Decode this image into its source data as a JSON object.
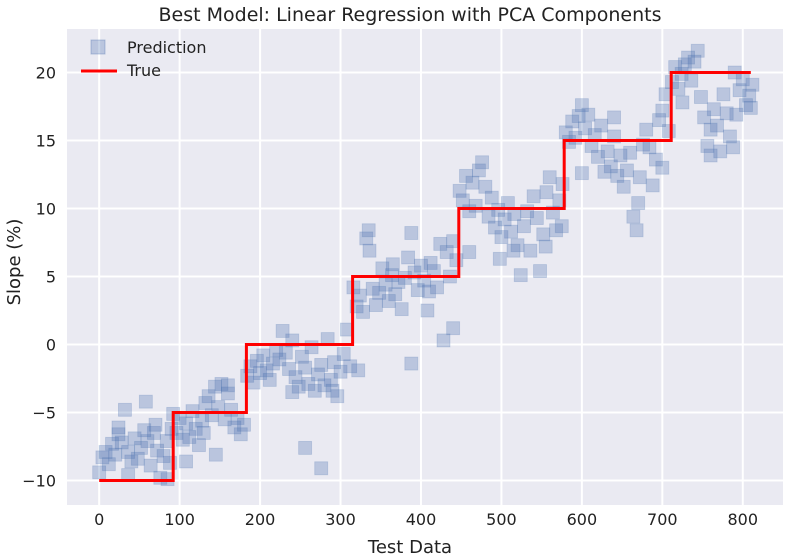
{
  "chart_data": {
    "type": "scatter",
    "title": "Best Model: Linear Regression with PCA Components",
    "xlabel": "Test Data",
    "ylabel": "Slope (%)",
    "xlim": [
      -40,
      850
    ],
    "ylim": [
      -11.8,
      23.2
    ],
    "xticks": [
      0,
      100,
      200,
      300,
      400,
      500,
      600,
      700,
      800
    ],
    "yticks": [
      -10,
      -5,
      0,
      5,
      10,
      15,
      20
    ],
    "grid": true,
    "legend_position": "top-left",
    "colors": {
      "background": "#eaeaf2",
      "prediction": "#4c72b0",
      "true": "#ff0000",
      "grid": "#ffffff"
    },
    "series": [
      {
        "name": "Prediction",
        "kind": "scatter",
        "marker": "square",
        "points": [
          [
            0,
            -9.4
          ],
          [
            4,
            -8.3
          ],
          [
            8,
            -7.9
          ],
          [
            12,
            -8.8
          ],
          [
            16,
            -7.3
          ],
          [
            20,
            -8.1
          ],
          [
            24,
            -6.6
          ],
          [
            28,
            -7.2
          ],
          [
            32,
            -4.8
          ],
          [
            36,
            -7.9
          ],
          [
            40,
            -8.6
          ],
          [
            44,
            -6.9
          ],
          [
            48,
            -8.4
          ],
          [
            52,
            -7.6
          ],
          [
            56,
            -6.3
          ],
          [
            60,
            -7.1
          ],
          [
            64,
            -8.9
          ],
          [
            68,
            -6.5
          ],
          [
            72,
            -7.8
          ],
          [
            76,
            -9.8
          ],
          [
            80,
            -8.2
          ],
          [
            84,
            -7.1
          ],
          [
            88,
            -8.7
          ],
          [
            58,
            -4.2
          ],
          [
            24,
            -6.1
          ],
          [
            36,
            -9.6
          ],
          [
            70,
            -5.9
          ],
          [
            85,
            -9.9
          ],
          [
            90,
            -6.2
          ],
          [
            92,
            -5.1
          ],
          [
            96,
            -6.5
          ],
          [
            100,
            -5.4
          ],
          [
            104,
            -7.0
          ],
          [
            108,
            -5.8
          ],
          [
            112,
            -6.8
          ],
          [
            116,
            -4.9
          ],
          [
            120,
            -6.2
          ],
          [
            124,
            -7.4
          ],
          [
            128,
            -5.6
          ],
          [
            132,
            -4.3
          ],
          [
            136,
            -3.8
          ],
          [
            140,
            -5.2
          ],
          [
            144,
            -3.1
          ],
          [
            148,
            -4.6
          ],
          [
            152,
            -2.9
          ],
          [
            156,
            -5.5
          ],
          [
            160,
            -3.6
          ],
          [
            164,
            -4.8
          ],
          [
            168,
            -6.1
          ],
          [
            172,
            -5.4
          ],
          [
            176,
            -6.6
          ],
          [
            180,
            -5.9
          ],
          [
            145,
            -8.1
          ],
          [
            108,
            -8.6
          ],
          [
            160,
            -3.0
          ],
          [
            130,
            -6.5
          ],
          [
            184,
            -2.3
          ],
          [
            188,
            -1.6
          ],
          [
            192,
            -2.8
          ],
          [
            196,
            -1.2
          ],
          [
            200,
            -2.1
          ],
          [
            204,
            -0.8
          ],
          [
            208,
            -1.9
          ],
          [
            212,
            -2.6
          ],
          [
            216,
            -1.4
          ],
          [
            220,
            -0.4
          ],
          [
            224,
            -1.1
          ],
          [
            228,
            1.0
          ],
          [
            232,
            -0.6
          ],
          [
            236,
            -1.8
          ],
          [
            240,
            0.3
          ],
          [
            244,
            -2.4
          ],
          [
            248,
            -3.1
          ],
          [
            252,
            -0.9
          ],
          [
            256,
            -1.7
          ],
          [
            260,
            -2.9
          ],
          [
            264,
            -0.2
          ],
          [
            268,
            -3.4
          ],
          [
            272,
            -2.2
          ],
          [
            276,
            -1.5
          ],
          [
            280,
            -3.0
          ],
          [
            284,
            0.4
          ],
          [
            288,
            -2.6
          ],
          [
            292,
            -1.3
          ],
          [
            296,
            -3.8
          ],
          [
            300,
            -2.0
          ],
          [
            304,
            -0.7
          ],
          [
            308,
            1.1
          ],
          [
            312,
            -1.6
          ],
          [
            256,
            -7.6
          ],
          [
            276,
            -9.1
          ],
          [
            322,
            -1.9
          ],
          [
            290,
            -3.4
          ],
          [
            240,
            -3.5
          ],
          [
            316,
            4.2
          ],
          [
            320,
            2.8
          ],
          [
            324,
            3.6
          ],
          [
            328,
            2.4
          ],
          [
            332,
            7.8
          ],
          [
            336,
            6.9
          ],
          [
            340,
            4.1
          ],
          [
            344,
            2.9
          ],
          [
            348,
            3.8
          ],
          [
            352,
            5.6
          ],
          [
            356,
            4.4
          ],
          [
            360,
            3.2
          ],
          [
            364,
            5.1
          ],
          [
            368,
            3.7
          ],
          [
            372,
            4.6
          ],
          [
            376,
            2.6
          ],
          [
            380,
            4.9
          ],
          [
            384,
            6.4
          ],
          [
            388,
            8.2
          ],
          [
            392,
            5.3
          ],
          [
            396,
            4.0
          ],
          [
            400,
            5.8
          ],
          [
            404,
            4.7
          ],
          [
            408,
            2.5
          ],
          [
            412,
            6.0
          ],
          [
            416,
            5.4
          ],
          [
            420,
            4.2
          ],
          [
            424,
            7.4
          ],
          [
            428,
            0.3
          ],
          [
            432,
            6.8
          ],
          [
            436,
            5.0
          ],
          [
            440,
            7.6
          ],
          [
            444,
            6.2
          ],
          [
            335,
            8.4
          ],
          [
            388,
            -1.4
          ],
          [
            365,
            5.9
          ],
          [
            410,
            3.9
          ],
          [
            440,
            1.2
          ],
          [
            448,
            11.3
          ],
          [
            452,
            10.6
          ],
          [
            456,
            12.4
          ],
          [
            460,
            9.8
          ],
          [
            464,
            11.9
          ],
          [
            468,
            10.2
          ],
          [
            472,
            12.8
          ],
          [
            476,
            13.4
          ],
          [
            480,
            11.6
          ],
          [
            484,
            9.4
          ],
          [
            488,
            10.8
          ],
          [
            492,
            8.6
          ],
          [
            496,
            9.9
          ],
          [
            500,
            7.9
          ],
          [
            504,
            9.2
          ],
          [
            508,
            10.4
          ],
          [
            512,
            8.3
          ],
          [
            516,
            9.6
          ],
          [
            520,
            7.3
          ],
          [
            524,
            5.1
          ],
          [
            528,
            8.7
          ],
          [
            532,
            9.8
          ],
          [
            536,
            6.9
          ],
          [
            540,
            10.9
          ],
          [
            544,
            9.3
          ],
          [
            548,
            5.4
          ],
          [
            552,
            8.1
          ],
          [
            556,
            11.2
          ],
          [
            560,
            12.3
          ],
          [
            564,
            9.7
          ],
          [
            568,
            8.4
          ],
          [
            572,
            10.6
          ],
          [
            576,
            11.8
          ],
          [
            460,
            6.8
          ],
          [
            498,
            6.3
          ],
          [
            515,
            6.9
          ],
          [
            555,
            7.2
          ],
          [
            575,
            8.7
          ],
          [
            580,
            15.6
          ],
          [
            584,
            14.9
          ],
          [
            588,
            16.4
          ],
          [
            592,
            15.2
          ],
          [
            596,
            16.8
          ],
          [
            600,
            17.6
          ],
          [
            604,
            15.9
          ],
          [
            608,
            16.9
          ],
          [
            612,
            14.6
          ],
          [
            616,
            15.4
          ],
          [
            620,
            13.8
          ],
          [
            624,
            16.1
          ],
          [
            628,
            12.7
          ],
          [
            632,
            14.2
          ],
          [
            636,
            13.1
          ],
          [
            640,
            15.3
          ],
          [
            644,
            12.4
          ],
          [
            648,
            13.9
          ],
          [
            652,
            11.6
          ],
          [
            656,
            12.8
          ],
          [
            660,
            14.1
          ],
          [
            664,
            9.4
          ],
          [
            668,
            8.4
          ],
          [
            672,
            12.3
          ],
          [
            676,
            14.7
          ],
          [
            680,
            15.8
          ],
          [
            684,
            14.5
          ],
          [
            688,
            11.7
          ],
          [
            692,
            13.6
          ],
          [
            696,
            16.5
          ],
          [
            700,
            17.2
          ],
          [
            704,
            18.4
          ],
          [
            708,
            15.7
          ],
          [
            600,
            12.6
          ],
          [
            640,
            16.7
          ],
          [
            670,
            10.4
          ],
          [
            700,
            13.0
          ],
          [
            712,
            19.3
          ],
          [
            716,
            20.4
          ],
          [
            720,
            18.8
          ],
          [
            724,
            19.9
          ],
          [
            728,
            20.6
          ],
          [
            732,
            21.1
          ],
          [
            736,
            19.4
          ],
          [
            740,
            20.8
          ],
          [
            744,
            21.6
          ],
          [
            748,
            18.2
          ],
          [
            752,
            16.7
          ],
          [
            756,
            14.6
          ],
          [
            760,
            15.8
          ],
          [
            764,
            17.3
          ],
          [
            768,
            16.1
          ],
          [
            772,
            14.2
          ],
          [
            776,
            18.4
          ],
          [
            780,
            17.0
          ],
          [
            784,
            15.3
          ],
          [
            788,
            14.5
          ],
          [
            792,
            16.9
          ],
          [
            796,
            18.7
          ],
          [
            800,
            19.5
          ],
          [
            804,
            17.6
          ],
          [
            808,
            18.3
          ],
          [
            812,
            19.1
          ],
          [
            760,
            13.9
          ],
          [
            790,
            20.0
          ],
          [
            725,
            17.8
          ],
          [
            810,
            17.4
          ]
        ]
      },
      {
        "name": "True",
        "kind": "step",
        "points": [
          [
            0,
            -10
          ],
          [
            92,
            -10
          ],
          [
            92,
            -5
          ],
          [
            183,
            -5
          ],
          [
            183,
            0
          ],
          [
            315,
            0
          ],
          [
            315,
            5
          ],
          [
            447,
            5
          ],
          [
            447,
            10
          ],
          [
            578,
            10
          ],
          [
            578,
            15
          ],
          [
            711,
            15
          ],
          [
            711,
            20
          ],
          [
            810,
            20
          ]
        ]
      }
    ]
  }
}
